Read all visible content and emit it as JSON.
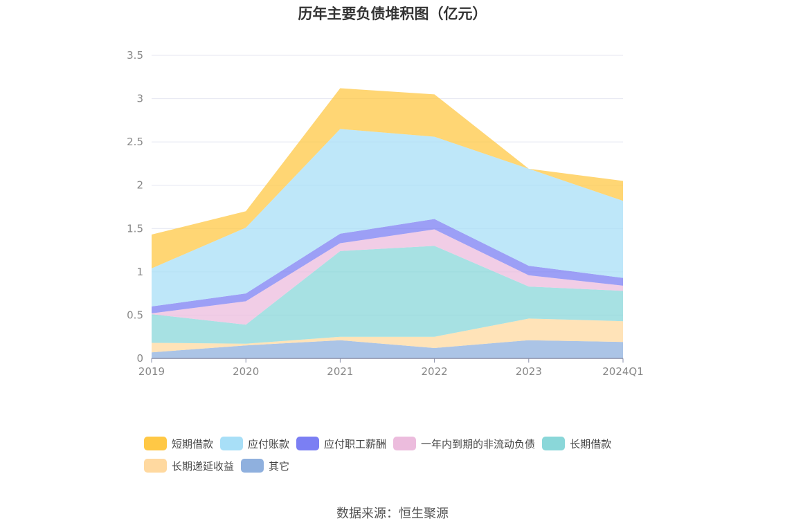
{
  "chart_data": {
    "type": "area",
    "stacked": true,
    "title": "历年主要负债堆积图（亿元）",
    "categories": [
      "2019",
      "2020",
      "2021",
      "2022",
      "2023",
      "2024Q1"
    ],
    "y_ticks": [
      "0",
      "0.5",
      "1",
      "1.5",
      "2",
      "2.5",
      "3",
      "3.5"
    ],
    "ylim": [
      0,
      3.5
    ],
    "series": [
      {
        "name": "其它",
        "color": "#8fb0de",
        "values": [
          0.07,
          0.15,
          0.21,
          0.12,
          0.21,
          0.19
        ]
      },
      {
        "name": "长期递延收益",
        "color": "#ffd9a0",
        "values": [
          0.11,
          0.02,
          0.04,
          0.13,
          0.25,
          0.24
        ]
      },
      {
        "name": "长期借款",
        "color": "#8ad7d9",
        "values": [
          0.33,
          0.22,
          0.99,
          1.05,
          0.37,
          0.35
        ]
      },
      {
        "name": "一年内到期的非流动负债",
        "color": "#ecbcdd",
        "values": [
          0.01,
          0.27,
          0.09,
          0.19,
          0.13,
          0.06
        ]
      },
      {
        "name": "应付职工薪酬",
        "color": "#7b7ff3",
        "values": [
          0.08,
          0.09,
          0.11,
          0.12,
          0.11,
          0.09
        ]
      },
      {
        "name": "应付账款",
        "color": "#a8dff7",
        "values": [
          0.44,
          0.76,
          1.21,
          0.95,
          1.12,
          0.89
        ]
      },
      {
        "name": "短期借款",
        "color": "#ffc845",
        "values": [
          0.39,
          0.19,
          0.47,
          0.49,
          0.0,
          0.23
        ]
      }
    ]
  },
  "legend_order": [
    "短期借款",
    "应付账款",
    "应付职工薪酬",
    "一年内到期的非流动负债",
    "长期借款",
    "长期递延收益",
    "其它"
  ],
  "source": "数据来源：恒生聚源"
}
